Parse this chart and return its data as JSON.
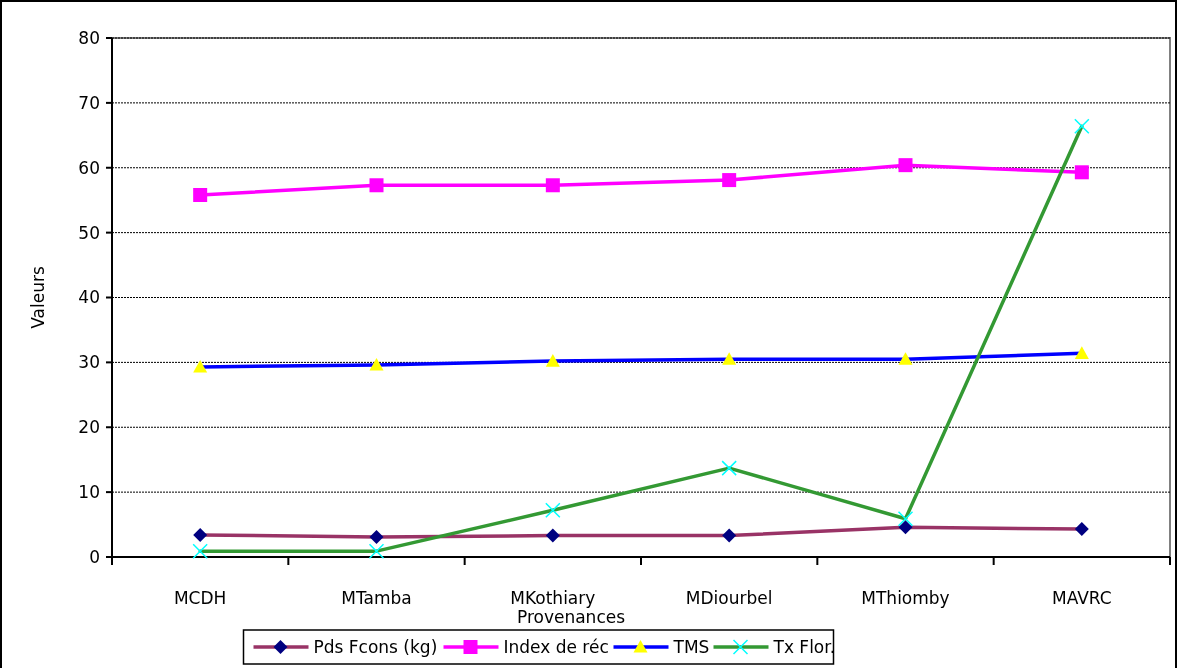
{
  "chart_data": {
    "type": "line",
    "xlabel": "Provenances",
    "ylabel": "Valeurs",
    "categories": [
      "MCDH",
      "MTamba",
      "MKothiary",
      "MDiourbel",
      "MThiomby",
      "MAVRC"
    ],
    "ylim": [
      0,
      80
    ],
    "yticks": [
      0,
      10,
      20,
      30,
      40,
      50,
      60,
      70,
      80
    ],
    "grid": "y",
    "legend": "bottom",
    "series": [
      {
        "name": "Pds Fcons (kg)",
        "color": "#993366",
        "marker": "diamond",
        "colors": [
          "#000080",
          "#000080",
          "#000080",
          "#000080",
          "#000080",
          "#000080"
        ],
        "values": [
          3.4,
          3.1,
          3.3,
          3.3,
          4.6,
          4.3
        ]
      },
      {
        "name": "Index de réc",
        "color": "#ff00ff",
        "marker": "square",
        "colors": [
          "#ff00ff",
          "#ff00ff",
          "#ff00ff",
          "#ff00ff",
          "#ff00ff",
          "#ff00ff"
        ],
        "values": [
          55.8,
          57.3,
          57.3,
          58.1,
          60.4,
          59.3
        ]
      },
      {
        "name": "TMS",
        "color": "#0000ff",
        "marker": "triangle",
        "colors": [
          "#ffff00",
          "#ffff00",
          "#ffff00",
          "#ffff00",
          "#ffff00",
          "#ffff00"
        ],
        "values": [
          29.3,
          29.6,
          30.2,
          30.5,
          30.5,
          31.4
        ]
      },
      {
        "name": "Tx Flor.",
        "color": "#339933",
        "marker": "cross",
        "colors": [
          "#00ffff",
          "#00ffff",
          "#00ffff",
          "#00ffff",
          "#00ffff",
          "#00ffff"
        ],
        "values": [
          0.9,
          0.9,
          7.2,
          13.7,
          5.9,
          66.4
        ]
      }
    ]
  }
}
